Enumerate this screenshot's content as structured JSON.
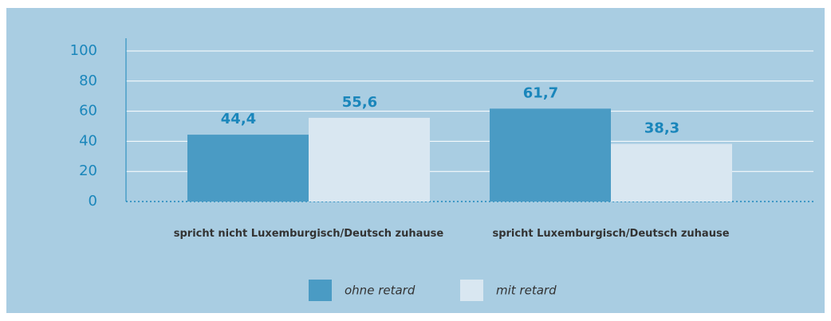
{
  "chart_data": {
    "type": "bar",
    "categories": [
      "spricht nicht Luxemburgisch/Deutsch zuhause",
      "spricht Luxemburgisch/Deutsch zuhause"
    ],
    "series": [
      {
        "name": "ohne retard",
        "color": "#4a9bc4",
        "values": [
          44.4,
          61.7
        ],
        "value_labels": [
          "44,4",
          "61,7"
        ]
      },
      {
        "name": "mit retard",
        "color": "#d9e7f1",
        "values": [
          55.6,
          38.3
        ],
        "value_labels": [
          "55,6",
          "38,3"
        ]
      }
    ],
    "ylim": [
      0,
      100
    ],
    "yticks": [
      0,
      20,
      40,
      60,
      80,
      100
    ],
    "grid": true
  }
}
